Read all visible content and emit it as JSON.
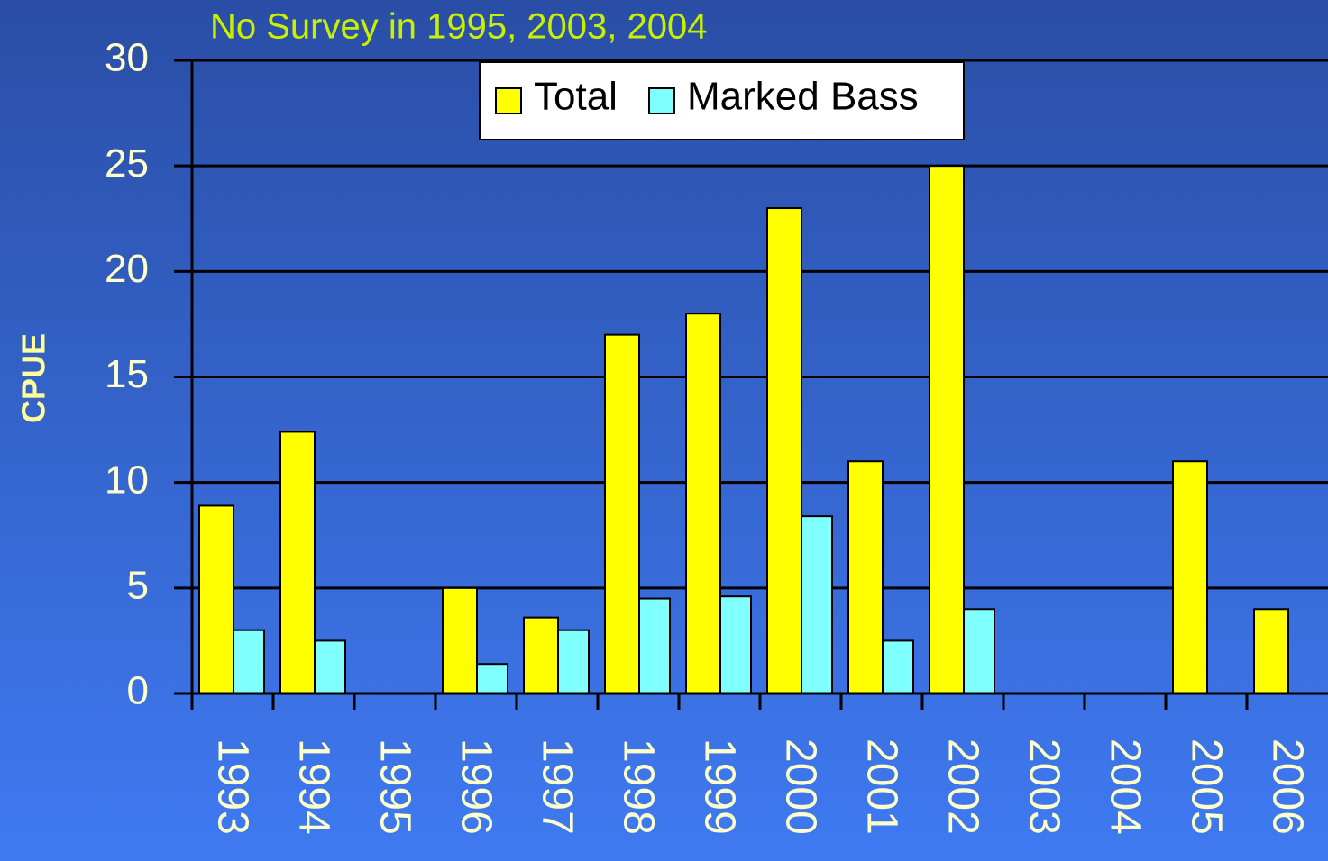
{
  "chart_data": {
    "type": "bar",
    "annotation": "No Survey in 1995, 2003, 2004",
    "y_label": "CPUE",
    "categories": [
      "1993",
      "1994",
      "1995",
      "1996",
      "1997",
      "1998",
      "1999",
      "2000",
      "2001",
      "2002",
      "2003",
      "2004",
      "2005",
      "2006"
    ],
    "series": [
      {
        "name": "Total",
        "color": "#ffff00",
        "values": [
          8.9,
          12.4,
          null,
          5,
          3.6,
          17,
          18,
          23,
          11,
          25,
          null,
          null,
          11,
          4
        ]
      },
      {
        "name": "Marked Bass",
        "color": "#80ffff",
        "values": [
          3,
          2.5,
          null,
          1.4,
          3,
          4.5,
          4.6,
          8.4,
          2.5,
          4,
          null,
          null,
          null,
          null
        ]
      }
    ],
    "ylim": [
      0,
      30
    ],
    "yticks": [
      0,
      5,
      10,
      15,
      20,
      25,
      30
    ],
    "grid": true,
    "legend": "top"
  }
}
